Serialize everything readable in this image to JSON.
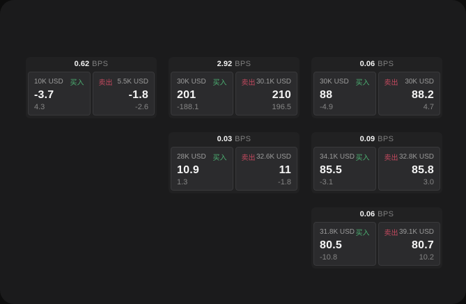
{
  "labels": {
    "bps_unit": "BPS",
    "buy": "买入",
    "sell": "卖出"
  },
  "colors": {
    "buy_green": "#4bae71",
    "sell_red": "#c4495f",
    "panel_bg": "#1b1b1c",
    "card_bg": "#212122",
    "tile_bg": "#2b2b2d"
  },
  "cards": [
    {
      "bps": "0.62",
      "buy": {
        "amount": "10K USD",
        "price": "-3.7",
        "change": "4.3"
      },
      "sell": {
        "amount": "5.5K USD",
        "price": "-1.8",
        "change": "-2.6"
      }
    },
    {
      "bps": "2.92",
      "buy": {
        "amount": "30K USD",
        "price": "201",
        "change": "-188.1"
      },
      "sell": {
        "amount": "30.1K USD",
        "price": "210",
        "change": "196.5"
      }
    },
    {
      "bps": "0.06",
      "buy": {
        "amount": "30K USD",
        "price": "88",
        "change": "-4.9"
      },
      "sell": {
        "amount": "30K USD",
        "price": "88.2",
        "change": "4.7"
      }
    },
    {
      "bps": "0.03",
      "buy": {
        "amount": "28K USD",
        "price": "10.9",
        "change": "1.3"
      },
      "sell": {
        "amount": "32.6K USD",
        "price": "11",
        "change": "-1.8"
      }
    },
    {
      "bps": "0.09",
      "buy": {
        "amount": "34.1K USD",
        "price": "85.5",
        "change": "-3.1"
      },
      "sell": {
        "amount": "32.8K USD",
        "price": "85.8",
        "change": "3.0"
      }
    },
    {
      "bps": "0.06",
      "buy": {
        "amount": "31.8K USD",
        "price": "80.5",
        "change": "-10.8"
      },
      "sell": {
        "amount": "39.1K USD",
        "price": "80.7",
        "change": "10.2"
      }
    }
  ]
}
